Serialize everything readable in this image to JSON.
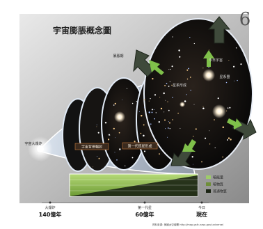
{
  "page_number": "6",
  "title": "宇宙膨脹概念圖",
  "labels": {
    "big_bang": "宇宙大爆炸",
    "recombination_a": "宇宙背景輻射",
    "recombination_b": "第一代恆星形成",
    "galaxy_label_1": "星系形成",
    "galaxy_label_2": "星系團",
    "current_universe": "今日宇宙",
    "inflation": "暴脹期"
  },
  "legend": {
    "items": [
      {
        "name": "暗能量",
        "color": "#9ecb6a"
      },
      {
        "name": "暗物質",
        "color": "#6f8f3a"
      },
      {
        "name": "普通物質",
        "color": "#1b2414"
      }
    ]
  },
  "timeline": [
    {
      "tag": "大爆炸",
      "value": "140億年"
    },
    {
      "tag": "第一代星",
      "value": "60億年"
    },
    {
      "tag": "今日",
      "value": "現在"
    }
  ],
  "source_note": "資料來源: 美國太空總署 http://map.gsfc.nasa.gov/universe/"
}
